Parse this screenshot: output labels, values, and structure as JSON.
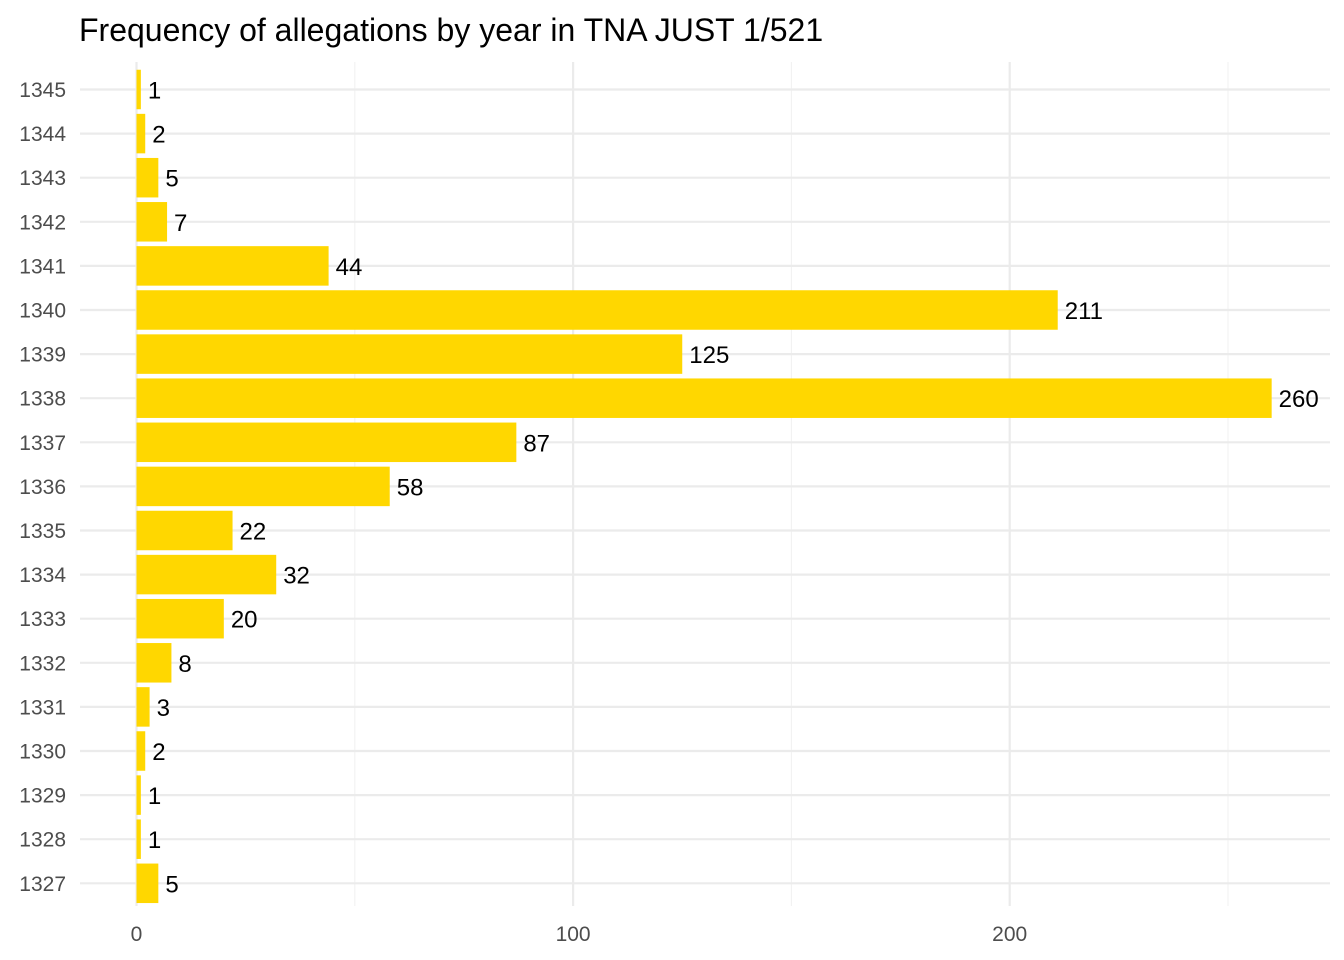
{
  "chart_data": {
    "type": "bar",
    "orientation": "horizontal",
    "title": "Frequency of allegations by year in TNA JUST 1/521",
    "xlabel": "",
    "ylabel": "",
    "categories": [
      "1345",
      "1344",
      "1343",
      "1342",
      "1341",
      "1340",
      "1339",
      "1338",
      "1337",
      "1336",
      "1335",
      "1334",
      "1333",
      "1332",
      "1331",
      "1330",
      "1329",
      "1328",
      "1327"
    ],
    "values": [
      1,
      2,
      5,
      7,
      44,
      211,
      125,
      260,
      87,
      58,
      22,
      32,
      20,
      8,
      3,
      2,
      1,
      1,
      5
    ],
    "value_labels": [
      "1",
      "2",
      "5",
      "7",
      "44",
      "211",
      "125",
      "260",
      "87",
      "58",
      "22",
      "32",
      "20",
      "8",
      "3",
      "2",
      "1",
      "1",
      "5"
    ],
    "x_ticks": [
      0,
      100,
      200
    ],
    "x_tick_labels": [
      "0",
      "100",
      "200"
    ],
    "xlim": [
      0,
      273
    ],
    "grid": true,
    "legend": "none",
    "colors": {
      "bar": "#FFD700",
      "grid_major": "#ebebeb",
      "grid_minor": "#f2f2f2",
      "title": "#000000",
      "tick_text": "#4d4d4d",
      "label_text": "#000000"
    }
  }
}
